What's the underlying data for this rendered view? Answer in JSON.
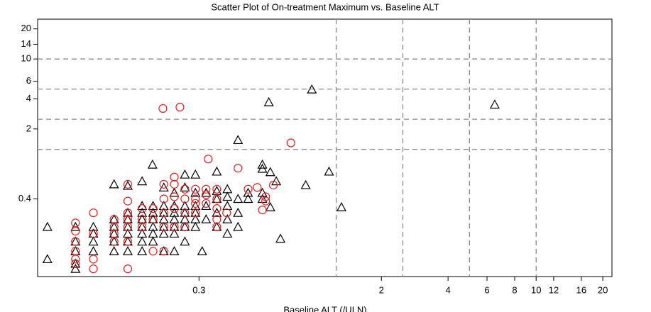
{
  "chart_data": {
    "type": "scatter",
    "title": "Scatter Plot of On-treatment Maximum vs. Baseline ALT",
    "x_label": "Baseline ALT (/ULN)",
    "log_x": true,
    "log_y": true,
    "xlim": [
      0.056,
      22
    ],
    "ylim": [
      0.067,
      25
    ],
    "xticks": [
      0.3,
      2,
      4,
      6,
      8,
      10,
      12,
      16,
      20
    ],
    "yticks": [
      0.4,
      2,
      4,
      6,
      10,
      14,
      20
    ],
    "reference_lines": {
      "x": [
        1.25,
        2.5,
        5,
        10
      ],
      "y": [
        1.25,
        2.5,
        5,
        10
      ]
    },
    "series": [
      {
        "color": "#000000",
        "marker": "triangle",
        "x": [
          0.062,
          0.062,
          0.083,
          0.083,
          0.083,
          0.083,
          0.083,
          0.1,
          0.1,
          0.1,
          0.1,
          0.124,
          0.124,
          0.124,
          0.124,
          0.124,
          0.124,
          0.143,
          0.143,
          0.143,
          0.143,
          0.143,
          0.143,
          0.143,
          0.166,
          0.166,
          0.166,
          0.166,
          0.166,
          0.166,
          0.166,
          0.166,
          0.186,
          0.186,
          0.186,
          0.186,
          0.186,
          0.186,
          0.185,
          0.208,
          0.208,
          0.208,
          0.208,
          0.208,
          0.208,
          0.208,
          0.232,
          0.232,
          0.232,
          0.232,
          0.232,
          0.232,
          0.232,
          0.259,
          0.259,
          0.259,
          0.259,
          0.259,
          0.259,
          0.259,
          0.289,
          0.289,
          0.289,
          0.289,
          0.289,
          0.289,
          0.31,
          0.323,
          0.323,
          0.323,
          0.361,
          0.361,
          0.361,
          0.361,
          0.361,
          0.403,
          0.403,
          0.403,
          0.403,
          0.403,
          0.45,
          0.45,
          0.45,
          0.45,
          0.5,
          0.5,
          0.58,
          0.58,
          0.58,
          0.58,
          0.62,
          0.63,
          0.63,
          0.67,
          0.7,
          0.91,
          0.97,
          1.16,
          1.32,
          6.5
        ],
        "values": [
          0.21,
          0.1,
          0.08,
          0.09,
          0.12,
          0.15,
          0.21,
          0.12,
          0.15,
          0.18,
          0.21,
          0.12,
          0.15,
          0.18,
          0.21,
          0.25,
          0.56,
          0.12,
          0.15,
          0.18,
          0.21,
          0.25,
          0.29,
          0.54,
          0.12,
          0.15,
          0.18,
          0.21,
          0.25,
          0.29,
          0.34,
          0.6,
          0.15,
          0.18,
          0.21,
          0.25,
          0.29,
          0.34,
          0.88,
          0.12,
          0.18,
          0.21,
          0.25,
          0.29,
          0.34,
          0.52,
          0.12,
          0.18,
          0.21,
          0.25,
          0.29,
          0.34,
          0.46,
          0.15,
          0.21,
          0.25,
          0.29,
          0.34,
          0.52,
          0.7,
          0.21,
          0.25,
          0.29,
          0.34,
          0.46,
          0.7,
          0.12,
          0.25,
          0.34,
          0.46,
          0.21,
          0.29,
          0.4,
          0.48,
          0.75,
          0.18,
          0.25,
          0.34,
          0.42,
          0.5,
          0.21,
          0.29,
          0.4,
          1.55,
          0.4,
          0.46,
          0.4,
          0.46,
          0.88,
          0.8,
          3.7,
          0.74,
          0.33,
          0.6,
          0.16,
          0.55,
          4.96,
          0.75,
          0.33,
          3.5
        ]
      },
      {
        "color": "#e02020",
        "marker": "circle",
        "x": [
          0.083,
          0.083,
          0.083,
          0.083,
          0.083,
          0.083,
          0.1,
          0.1,
          0.1,
          0.1,
          0.124,
          0.124,
          0.124,
          0.124,
          0.143,
          0.143,
          0.143,
          0.143,
          0.143,
          0.143,
          0.143,
          0.166,
          0.166,
          0.166,
          0.186,
          0.186,
          0.186,
          0.208,
          0.208,
          0.208,
          0.208,
          0.208,
          0.206,
          0.232,
          0.232,
          0.232,
          0.232,
          0.232,
          0.246,
          0.259,
          0.259,
          0.259,
          0.259,
          0.289,
          0.289,
          0.289,
          0.289,
          0.323,
          0.323,
          0.323,
          0.33,
          0.361,
          0.361,
          0.361,
          0.361,
          0.361,
          0.4,
          0.45,
          0.5,
          0.55,
          0.58,
          0.6,
          0.6,
          0.65,
          0.78
        ],
        "values": [
          0.09,
          0.1,
          0.12,
          0.15,
          0.19,
          0.23,
          0.08,
          0.1,
          0.18,
          0.29,
          0.15,
          0.18,
          0.21,
          0.25,
          0.08,
          0.15,
          0.21,
          0.25,
          0.29,
          0.38,
          0.56,
          0.21,
          0.25,
          0.32,
          0.12,
          0.25,
          0.32,
          0.12,
          0.21,
          0.29,
          0.4,
          0.56,
          3.2,
          0.21,
          0.32,
          0.42,
          0.56,
          0.66,
          3.3,
          0.21,
          0.29,
          0.4,
          0.5,
          0.29,
          0.36,
          0.4,
          0.5,
          0.36,
          0.44,
          0.5,
          1.0,
          0.21,
          0.25,
          0.32,
          0.4,
          0.5,
          0.29,
          0.81,
          0.5,
          0.52,
          0.31,
          0.38,
          0.42,
          0.55,
          1.45
        ]
      }
    ]
  }
}
